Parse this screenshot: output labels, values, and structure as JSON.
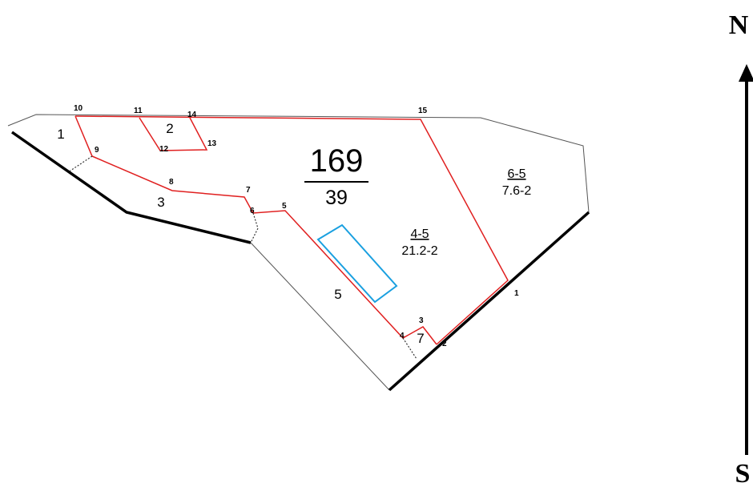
{
  "parcel": {
    "number": "169",
    "sub": "39"
  },
  "plots": [
    {
      "label": "4-5",
      "sub": "21.2-2"
    },
    {
      "label": "6-5",
      "sub": "7.6-2"
    }
  ],
  "zones": [
    "1",
    "2",
    "3",
    "5",
    "7"
  ],
  "points": [
    "1",
    "2",
    "3",
    "4",
    "5",
    "6",
    "7",
    "8",
    "9",
    "10",
    "11",
    "12",
    "13",
    "14",
    "15"
  ],
  "compass": {
    "north": "N",
    "south": "S"
  }
}
